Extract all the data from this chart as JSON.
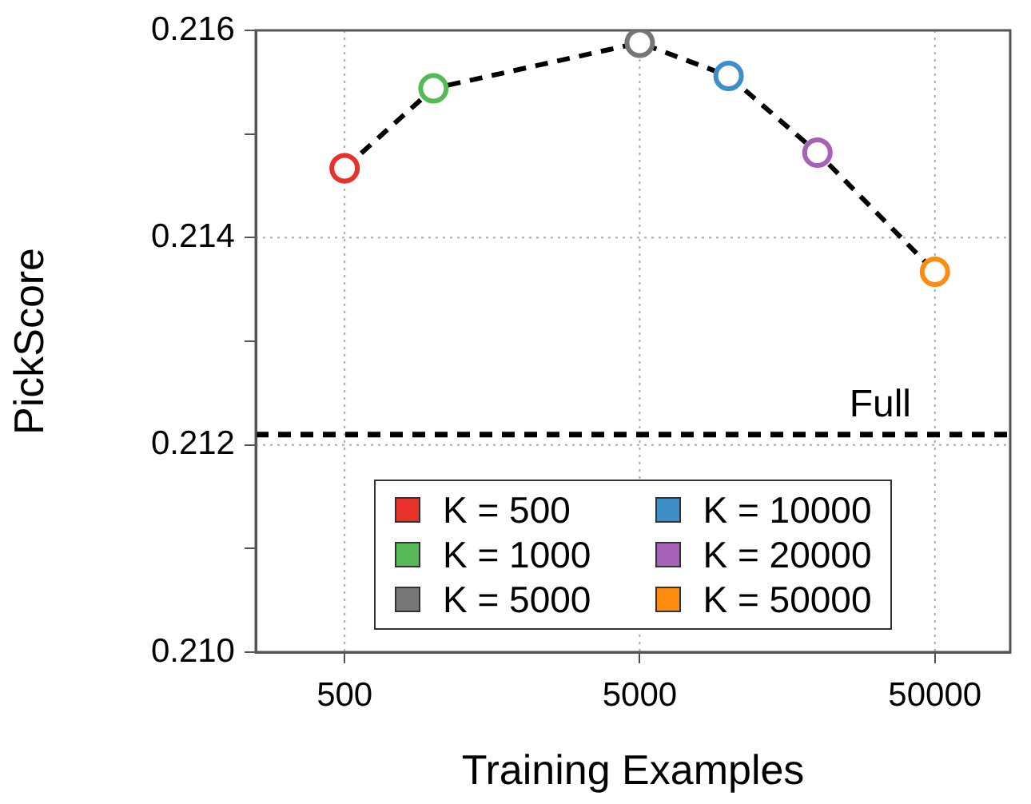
{
  "chart_data": {
    "type": "scatter",
    "xlabel": "Training Examples",
    "ylabel": "PickScore",
    "log": "x",
    "grid": true,
    "legend": "bottom",
    "marker": "circle",
    "xlim": [
      250,
      90000
    ],
    "xticks": [
      500,
      5000,
      50000
    ],
    "ylim": [
      0.21,
      0.216
    ],
    "yticks": [
      {
        "value": 0.21,
        "label": "0.210"
      },
      {
        "value": 0.211,
        "label": null
      },
      0.212,
      {
        "value": 0.213,
        "label": null
      },
      0.214,
      {
        "value": 0.215,
        "label": null
      },
      0.216
    ],
    "series": [
      {
        "type": "line",
        "color": "#000000",
        "line_style": "dashed",
        "marker": "none",
        "x": [
          500,
          1000,
          5000,
          10000,
          20000,
          50000
        ],
        "values": [
          0.21467,
          0.21544,
          0.21588,
          0.21556,
          0.21482,
          0.21367
        ]
      },
      {
        "name": "K = 500",
        "color": "#e8312a",
        "x": [
          500
        ],
        "values": [
          0.21467
        ]
      },
      {
        "name": "K = 1000",
        "color": "#55b955",
        "x": [
          1000
        ],
        "values": [
          0.21544
        ]
      },
      {
        "name": "K = 5000",
        "color": "#767676",
        "x": [
          5000
        ],
        "values": [
          0.21588
        ]
      },
      {
        "name": "K = 10000",
        "color": "#3e8ec8",
        "x": [
          10000
        ],
        "values": [
          0.21556
        ]
      },
      {
        "name": "K = 20000",
        "color": "#a562b8",
        "x": [
          20000
        ],
        "values": [
          0.21482
        ]
      },
      {
        "name": "K = 50000",
        "color": "#ff8c0f",
        "x": [
          50000
        ],
        "values": [
          0.21367
        ]
      }
    ],
    "ref_lines": [
      {
        "axis": "y",
        "value": 0.2121,
        "label": "Full",
        "color": "#000000",
        "line_style": "dashed"
      }
    ]
  }
}
